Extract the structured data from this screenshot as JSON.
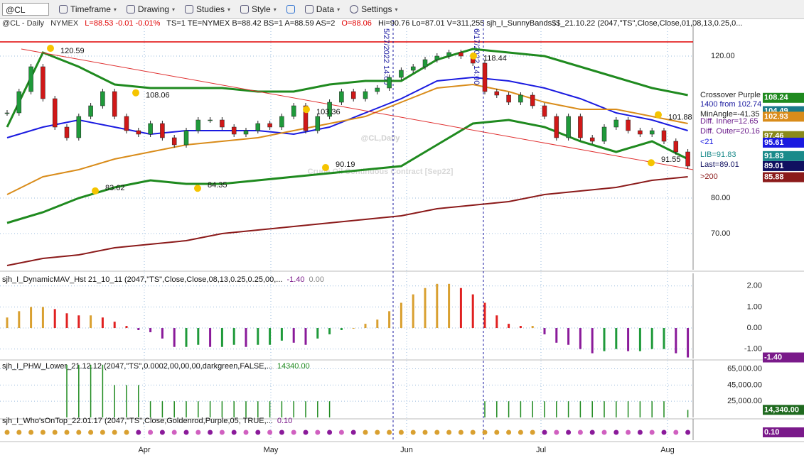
{
  "toolbar": {
    "symbol": "@CL",
    "items": [
      "Timeframe",
      "Drawing",
      "Studies",
      "Style",
      "Data",
      "Settings"
    ]
  },
  "header": {
    "symbol": "@CL - Daily",
    "exchange": "NYMEX",
    "last": "L=88.53 -0.01 -0.01%",
    "quote": "TS=1 TE=NYMEX B=88.42 BS=1 A=88.59 AS=2",
    "open": "O=88.06",
    "rest": "Hi=90.76 Lo=87.01 V=311,255 sjh_I_SunnyBands$$_21.10.22 (2047,\"TS\",Close,Close,01,08,13,0.25,0..."
  },
  "chart_data": [
    {
      "type": "candlestick",
      "watermark": "@CL,Daily",
      "subtitle": "Crude Oil Continuous Contract [Sep22]",
      "months": [
        "Apr",
        "May",
        "Jun",
        "Jul",
        "Aug"
      ],
      "markers": [
        "5/27/2022 14:00",
        "6/17/2022 14:00"
      ],
      "values": [
        104,
        110,
        117,
        108,
        100,
        97,
        103,
        106,
        110,
        103,
        99,
        98,
        101,
        97,
        95,
        99,
        102,
        102,
        100,
        98,
        99,
        101,
        100,
        103,
        106,
        99,
        103,
        107,
        110,
        108,
        110,
        111,
        114,
        116,
        117,
        119,
        120,
        121,
        120,
        118,
        110,
        109,
        107,
        109,
        106,
        103,
        97,
        103,
        97,
        96,
        100,
        102,
        99,
        98,
        99,
        96,
        93,
        89
      ],
      "series": [
        {
          "name": "upper",
          "color": "#1f8a1f",
          "values": [
            100,
            121,
            117,
            112,
            111,
            111,
            111,
            110,
            110,
            112,
            113,
            113,
            119,
            122,
            121,
            120,
            117,
            114,
            111,
            109
          ]
        },
        {
          "name": "lower",
          "color": "#1f8a1f",
          "values": [
            73,
            76,
            80,
            83,
            85,
            84,
            84,
            85,
            86,
            87,
            88,
            89,
            95,
            101,
            102,
            100,
            96,
            93,
            96,
            91
          ]
        },
        {
          "name": "blue",
          "color": "#1a1ae0",
          "values": [
            97,
            100,
            102,
            100,
            98,
            99,
            99,
            99,
            98,
            100,
            104,
            108,
            113,
            114,
            113,
            111,
            108,
            104,
            102,
            99
          ]
        },
        {
          "name": "orange",
          "color": "#d98c1a",
          "values": [
            81,
            86,
            88,
            91,
            93,
            95,
            96,
            97,
            99,
            101,
            103,
            107,
            111,
            112,
            110,
            107,
            105,
            105,
            103,
            101
          ]
        },
        {
          "name": "maroon",
          "color": "#8b1a1a",
          "values": [
            61,
            63,
            64,
            66,
            67,
            68,
            70,
            71,
            72,
            73,
            74,
            75,
            77,
            78,
            79,
            81,
            82,
            83,
            85,
            86
          ]
        },
        {
          "name": "trend",
          "color": "#e03030",
          "values": [
            122,
            88
          ]
        }
      ],
      "resistance": 124,
      "annotations": [
        120.59,
        108.06,
        83.62,
        84.35,
        103.36,
        90.19,
        118.44,
        101.88,
        91.55
      ],
      "boxes": [
        108.24,
        104.49,
        102.93,
        97.46,
        95.61,
        91.83,
        89.01,
        85.88
      ],
      "box_colors": [
        "#1f8a1f",
        "#1a7a8a",
        "#d98c1a",
        "#8a8a1a",
        "#1a1ae0",
        "#1a8a8a",
        "#101060",
        "#8b1a1a"
      ],
      "notes": [
        "Crossover Purple",
        "1400 from 102.74",
        "MinAngle=-41.35",
        "Diff. Inner=12.65",
        "Diff. Outer=20.16",
        "<21",
        "LIB=91.83",
        "Last=89.01",
        ">200"
      ],
      "ylim": [
        59.8,
        130.2
      ],
      "yticks": [
        {
          "value": 70,
          "label": "70.00"
        },
        {
          "value": 80,
          "label": "80.00"
        },
        {
          "value": 120,
          "label": "120.00"
        }
      ]
    },
    {
      "type": "histogram",
      "title": "sjh_I_DynamicMAV_Hst 21_10_11 (2047,\"TS\",Close,Close,08,13,0.25,0.25,00,...",
      "header_values": [
        "-1.40",
        "0.00"
      ],
      "values": [
        0.5,
        0.8,
        1.0,
        1.0,
        0.9,
        0.7,
        0.6,
        0.6,
        0.5,
        0.3,
        0.1,
        -0.1,
        -0.2,
        -0.5,
        -0.9,
        -0.9,
        -0.8,
        -0.9,
        -0.9,
        -0.8,
        -0.9,
        -0.8,
        -0.8,
        -0.6,
        -0.7,
        -0.8,
        -0.5,
        -0.3,
        -0.1,
        0.0,
        0.2,
        0.4,
        0.8,
        1.2,
        1.6,
        1.9,
        2.1,
        2.1,
        1.9,
        1.6,
        1.2,
        0.6,
        0.2,
        0.1,
        0.1,
        -0.3,
        -0.7,
        -0.8,
        -1.0,
        -1.2,
        -1.1,
        -1.0,
        -1.1,
        -1.1,
        -1.0,
        -1.0,
        -1.2,
        -1.4
      ],
      "last_label": "-1.40",
      "ylim": [
        -1.45,
        2.6
      ],
      "yticks": [
        {
          "value": -1,
          "label": "-1.00"
        },
        {
          "value": 0,
          "label": "0.00"
        },
        {
          "value": 1,
          "label": "1.00"
        },
        {
          "value": 2,
          "label": "2.00"
        }
      ]
    },
    {
      "type": "bar",
      "title": "sjh_I_PHW_Lower_21.12.12 (2047,\"TS\",0.0002,00,00,00,darkgreen,FALSE,...",
      "header_value": "14340.00",
      "color": "#1f8a1f",
      "values": [
        0,
        0,
        0,
        0,
        0,
        70000,
        70000,
        70000,
        70000,
        45000,
        45000,
        45000,
        25000,
        25000,
        25000,
        25000,
        25000,
        25000,
        25000,
        25000,
        25000,
        25000,
        25000,
        25000,
        25000,
        25000,
        25000,
        25000,
        0,
        0,
        0,
        0,
        0,
        0,
        0,
        0,
        0,
        0,
        0,
        0,
        25000,
        25000,
        25000,
        25000,
        25000,
        25000,
        25000,
        25000,
        25000,
        25000,
        25000,
        25000,
        25000,
        25000,
        25000,
        25000,
        0,
        14340
      ],
      "last_label": "14,340.00",
      "ylim": [
        5000,
        76000
      ],
      "yticks": [
        {
          "value": 25000,
          "label": "25,000.00"
        },
        {
          "value": 45000,
          "label": "45,000.00"
        },
        {
          "value": 65000,
          "label": "65,000.00"
        }
      ]
    },
    {
      "type": "dots",
      "title": "sjh_I_Who'sOnTop_22.01.17 (2047,\"TS\",Close,Goldenrod,Purple,05, TRUE,...",
      "header_value": "0.10",
      "last_label": "0.10"
    }
  ]
}
